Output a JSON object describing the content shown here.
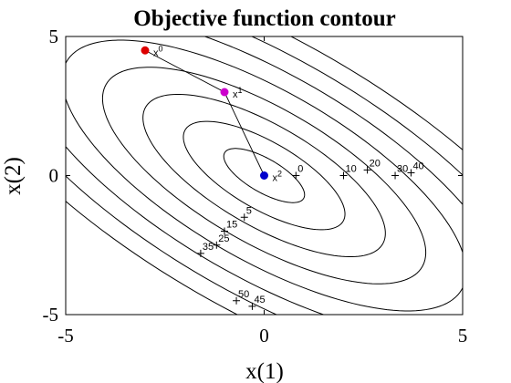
{
  "chart_data": {
    "type": "contour",
    "title": "Objective function contour",
    "xlabel": "x(1)",
    "ylabel": "x(2)",
    "xlim": [
      -5,
      5
    ],
    "ylim": [
      -5,
      5
    ],
    "x_ticks": [
      -5,
      0,
      5
    ],
    "y_ticks": [
      -5,
      0,
      5
    ],
    "x_tick_labels": [
      "-5",
      "0",
      "5"
    ],
    "y_tick_labels": [
      "-5",
      "0",
      "5"
    ],
    "grid": false,
    "contour_levels": [
      {
        "value": 0,
        "label": "0"
      },
      {
        "value": 5,
        "label": "5"
      },
      {
        "value": 10,
        "label": "10"
      },
      {
        "value": 15,
        "label": "15"
      },
      {
        "value": 20,
        "label": "20"
      },
      {
        "value": 25,
        "label": "25"
      },
      {
        "value": 30,
        "label": "30"
      },
      {
        "value": 35,
        "label": "35"
      },
      {
        "value": 40,
        "label": "40"
      },
      {
        "value": 45,
        "label": "45"
      },
      {
        "value": 50,
        "label": "50"
      }
    ],
    "level_markers": [
      {
        "label": "0",
        "x": 0.8,
        "y": 0.0
      },
      {
        "label": "5",
        "x": -0.5,
        "y": -1.5
      },
      {
        "label": "10",
        "x": 2.0,
        "y": 0.0
      },
      {
        "label": "15",
        "x": -1.0,
        "y": -2.0
      },
      {
        "label": "20",
        "x": 2.6,
        "y": 0.2
      },
      {
        "label": "25",
        "x": -1.2,
        "y": -2.5
      },
      {
        "label": "30",
        "x": 3.3,
        "y": 0.0
      },
      {
        "label": "35",
        "x": -1.6,
        "y": -2.8
      },
      {
        "label": "40",
        "x": 3.7,
        "y": 0.1
      },
      {
        "label": "45",
        "x": -0.3,
        "y": -4.7
      },
      {
        "label": "50",
        "x": -0.7,
        "y": -4.5
      }
    ],
    "iterates": [
      {
        "label": "x",
        "sup": "0",
        "x": -3.0,
        "y": 4.5,
        "color": "#dd0000"
      },
      {
        "label": "x",
        "sup": "1",
        "x": -1.0,
        "y": 3.0,
        "color": "#cc00cc"
      },
      {
        "label": "x",
        "sup": "2",
        "x": 0.0,
        "y": 0.0,
        "color": "#0000cc"
      }
    ]
  }
}
